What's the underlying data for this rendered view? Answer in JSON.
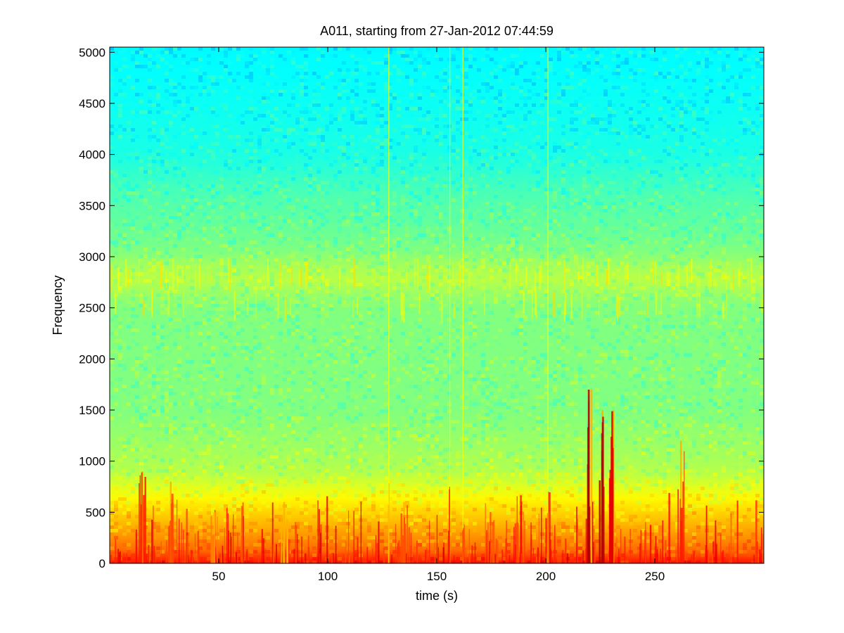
{
  "chart_data": {
    "type": "heatmap",
    "title": "A011, starting from 27-Jan-2012 07:44:59",
    "xlabel": "time (s)",
    "ylabel": "Frequency",
    "xlim": [
      0,
      300
    ],
    "ylim": [
      0,
      5050
    ],
    "x_ticks": [
      50,
      100,
      150,
      200,
      250
    ],
    "y_ticks": [
      0,
      500,
      1000,
      1500,
      2000,
      2500,
      3000,
      3500,
      4000,
      4500,
      5000
    ],
    "colormap": "jet",
    "grid": false,
    "frequency_profile": [
      {
        "freq": 0,
        "level": 0.86
      },
      {
        "freq": 100,
        "level": 0.78
      },
      {
        "freq": 300,
        "level": 0.72
      },
      {
        "freq": 600,
        "level": 0.64
      },
      {
        "freq": 900,
        "level": 0.55
      },
      {
        "freq": 1500,
        "level": 0.5
      },
      {
        "freq": 2500,
        "level": 0.5
      },
      {
        "freq": 2800,
        "level": 0.56
      },
      {
        "freq": 3100,
        "level": 0.49
      },
      {
        "freq": 3600,
        "level": 0.45
      },
      {
        "freq": 4000,
        "level": 0.4
      },
      {
        "freq": 5050,
        "level": 0.37
      }
    ],
    "events": [
      {
        "time": 15,
        "fmax": 900,
        "strength": 0.85
      },
      {
        "time": 28,
        "fmax": 800,
        "strength": 0.8
      },
      {
        "time": 48,
        "fmax": 500,
        "strength": 0.75
      },
      {
        "time": 80,
        "fmax": 600,
        "strength": 0.7
      },
      {
        "time": 128,
        "fmax": 5050,
        "strength": 0.7
      },
      {
        "time": 135,
        "fmax": 600,
        "strength": 0.8
      },
      {
        "time": 156,
        "fmax": 5050,
        "strength": 0.85
      },
      {
        "time": 162,
        "fmax": 5050,
        "strength": 0.8
      },
      {
        "time": 201,
        "fmax": 5050,
        "strength": 0.75
      },
      {
        "time": 221,
        "fmax": 1700,
        "strength": 0.95
      },
      {
        "time": 226,
        "fmax": 1500,
        "strength": 0.95
      },
      {
        "time": 231,
        "fmax": 1500,
        "strength": 0.9
      },
      {
        "time": 262,
        "fmax": 1200,
        "strength": 0.85
      }
    ]
  }
}
